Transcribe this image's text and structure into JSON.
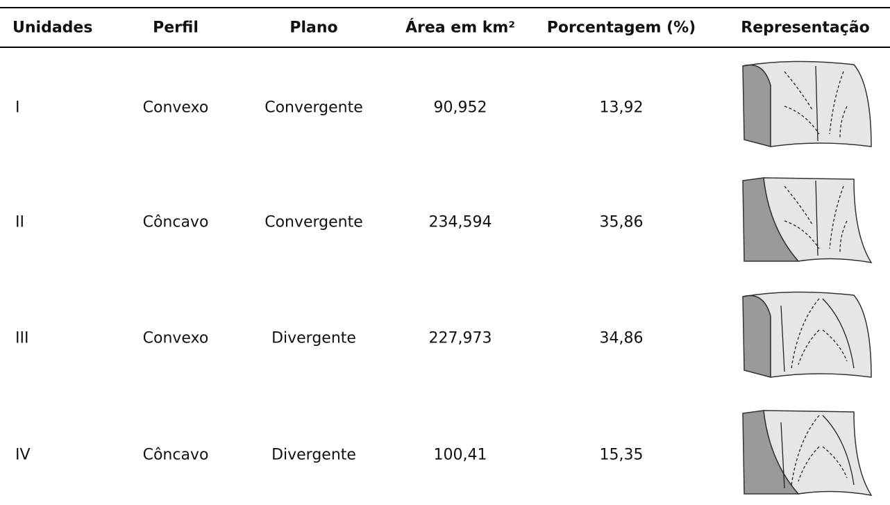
{
  "table": {
    "header": [
      "Unidades",
      "Perfil",
      "Plano",
      "Área em km²",
      "Porcentagem (%)",
      "Representação"
    ],
    "rows": [
      [
        "I",
        "Convexo",
        "Convergente",
        "90,952",
        "13,92"
      ],
      [
        "II",
        "Côncavo",
        "Convergente",
        "234,594",
        "35,86"
      ],
      [
        "III",
        "Convexo",
        "Divergente",
        "227,973",
        "34,86"
      ],
      [
        "IV",
        "Côncavo",
        "Divergente",
        "100,41",
        "15,35"
      ]
    ]
  }
}
